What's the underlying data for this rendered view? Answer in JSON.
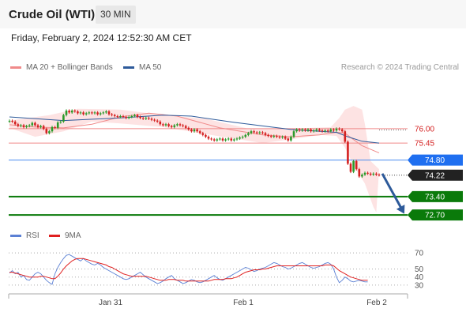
{
  "header": {
    "title": "Crude Oil (WTI)",
    "timeframe": "30 MIN"
  },
  "datetime": "Friday, February 2, 2024 12:52:30 AM CET",
  "legend": {
    "ma20": "MA 20 + Bollinger Bands",
    "ma50": "MA 50",
    "credit": "Research © 2024 Trading Central",
    "rsi": "RSI",
    "rsi_ma": "9MA"
  },
  "colors": {
    "ma20": "#f08a8a",
    "ma50": "#2d5a9a",
    "band": "#fde3e3",
    "resistance": "#f08a8a",
    "current": "#4a8cf0",
    "support": "#0a7a0a",
    "candle_up": "#2a9a2a",
    "candle_down": "#d42020",
    "arrow": "#2d5a9a",
    "rsi": "#5b80d4",
    "rsi_ma": "#e02020"
  },
  "chart_data": [
    {
      "type": "candlestick",
      "title": "Crude Oil (WTI)",
      "x_labels": [
        "Jan 31",
        "Feb 1",
        "Feb 2"
      ],
      "price_range": [
        72.4,
        77.9
      ],
      "candles": [
        [
          76.27,
          76.3
        ],
        [
          76.3,
          76.27
        ],
        [
          76.27,
          76.17
        ],
        [
          76.17,
          76.1
        ],
        [
          76.1,
          76.13
        ],
        [
          76.13,
          76.06
        ],
        [
          76.06,
          76.1
        ],
        [
          76.1,
          76.13
        ],
        [
          76.13,
          76.22
        ],
        [
          76.22,
          76.13
        ],
        [
          76.13,
          76.06
        ],
        [
          76.06,
          76.1
        ],
        [
          76.1,
          75.99
        ],
        [
          75.99,
          75.83
        ],
        [
          75.83,
          75.9
        ],
        [
          75.9,
          76.06
        ],
        [
          76.06,
          76.03
        ],
        [
          76.03,
          76.24
        ],
        [
          76.24,
          76.27
        ],
        [
          76.27,
          76.52
        ],
        [
          76.52,
          76.69
        ],
        [
          76.69,
          76.62
        ],
        [
          76.62,
          76.69
        ],
        [
          76.69,
          76.66
        ],
        [
          76.66,
          76.59
        ],
        [
          76.59,
          76.62
        ],
        [
          76.62,
          76.55
        ],
        [
          76.55,
          76.59
        ],
        [
          76.59,
          76.62
        ],
        [
          76.62,
          76.59
        ],
        [
          76.59,
          76.62
        ],
        [
          76.62,
          76.55
        ],
        [
          76.55,
          76.59
        ],
        [
          76.59,
          76.62
        ],
        [
          76.62,
          76.66
        ],
        [
          76.66,
          76.55
        ],
        [
          76.55,
          76.52
        ],
        [
          76.52,
          76.48
        ],
        [
          76.48,
          76.45
        ],
        [
          76.45,
          76.48
        ],
        [
          76.48,
          76.45
        ],
        [
          76.45,
          76.41
        ],
        [
          76.41,
          76.45
        ],
        [
          76.45,
          76.48
        ],
        [
          76.48,
          76.52
        ],
        [
          76.52,
          76.45
        ],
        [
          76.45,
          76.41
        ],
        [
          76.41,
          76.38
        ],
        [
          76.38,
          76.41
        ],
        [
          76.41,
          76.38
        ],
        [
          76.38,
          76.34
        ],
        [
          76.34,
          76.31
        ],
        [
          76.31,
          76.27
        ],
        [
          76.27,
          76.17
        ],
        [
          76.17,
          76.13
        ],
        [
          76.13,
          76.17
        ],
        [
          76.17,
          76.1
        ],
        [
          76.1,
          76.06
        ],
        [
          76.06,
          76.13
        ],
        [
          76.13,
          76.17
        ],
        [
          76.17,
          76.13
        ],
        [
          76.13,
          76.1
        ],
        [
          76.1,
          76.03
        ],
        [
          76.03,
          75.97
        ],
        [
          75.97,
          75.9
        ],
        [
          75.9,
          75.97
        ],
        [
          75.97,
          75.9
        ],
        [
          75.9,
          75.83
        ],
        [
          75.83,
          75.76
        ],
        [
          75.76,
          75.69
        ],
        [
          75.69,
          75.62
        ],
        [
          75.62,
          75.59
        ],
        [
          75.59,
          75.55
        ],
        [
          75.55,
          75.59
        ],
        [
          75.59,
          75.62
        ],
        [
          75.62,
          75.55
        ],
        [
          75.55,
          75.59
        ],
        [
          75.59,
          75.62
        ],
        [
          75.62,
          75.55
        ],
        [
          75.55,
          75.59
        ],
        [
          75.59,
          75.62
        ],
        [
          75.62,
          75.66
        ],
        [
          75.66,
          75.69
        ],
        [
          75.69,
          75.76
        ],
        [
          75.76,
          75.83
        ],
        [
          75.83,
          75.9
        ],
        [
          75.9,
          75.86
        ],
        [
          75.86,
          75.83
        ],
        [
          75.83,
          75.86
        ],
        [
          75.86,
          75.83
        ],
        [
          75.83,
          75.76
        ],
        [
          75.76,
          75.72
        ],
        [
          75.72,
          75.69
        ],
        [
          75.69,
          75.72
        ],
        [
          75.72,
          75.69
        ],
        [
          75.69,
          75.66
        ],
        [
          75.66,
          75.69
        ],
        [
          75.69,
          75.62
        ],
        [
          75.62,
          75.55
        ],
        [
          75.55,
          75.69
        ],
        [
          75.69,
          75.9
        ],
        [
          75.9,
          75.97
        ],
        [
          75.97,
          75.93
        ],
        [
          75.93,
          75.97
        ],
        [
          75.97,
          75.93
        ],
        [
          75.93,
          75.97
        ],
        [
          75.97,
          75.9
        ],
        [
          75.9,
          75.93
        ],
        [
          75.93,
          75.97
        ],
        [
          75.97,
          75.93
        ],
        [
          75.93,
          75.9
        ],
        [
          75.9,
          75.93
        ],
        [
          75.93,
          75.9
        ],
        [
          75.9,
          75.97
        ],
        [
          75.97,
          75.93
        ],
        [
          75.93,
          76.0
        ],
        [
          76.0,
          75.97
        ],
        [
          75.97,
          75.9
        ],
        [
          75.9,
          75.5
        ],
        [
          75.5,
          74.66
        ],
        [
          74.66,
          74.35
        ],
        [
          74.35,
          74.76
        ],
        [
          74.76,
          74.45
        ],
        [
          74.45,
          74.17
        ],
        [
          74.17,
          74.24
        ],
        [
          74.24,
          74.31
        ],
        [
          74.31,
          74.28
        ],
        [
          74.28,
          74.24
        ],
        [
          74.24,
          74.28
        ],
        [
          74.28,
          74.24
        ],
        [
          74.24,
          74.22
        ]
      ],
      "ma20": [
        [
          1,
          76.15
        ],
        [
          10,
          76.06
        ],
        [
          20,
          76.03
        ],
        [
          30,
          76.17
        ],
        [
          40,
          76.45
        ],
        [
          50,
          76.59
        ],
        [
          60,
          76.48
        ],
        [
          75,
          76.03
        ],
        [
          90,
          75.76
        ],
        [
          100,
          75.69
        ],
        [
          110,
          75.76
        ],
        [
          116,
          75.86
        ],
        [
          119,
          75.83
        ],
        [
          121,
          75.66
        ],
        [
          125,
          75.35
        ],
        [
          131,
          75.07
        ]
      ],
      "ma50": [
        [
          1,
          76.45
        ],
        [
          20,
          76.31
        ],
        [
          40,
          76.41
        ],
        [
          55,
          76.52
        ],
        [
          65,
          76.48
        ],
        [
          80,
          76.24
        ],
        [
          100,
          75.97
        ],
        [
          116,
          75.86
        ],
        [
          120,
          75.69
        ],
        [
          125,
          75.52
        ],
        [
          131,
          75.45
        ]
      ],
      "bollinger_upper": [
        [
          1,
          76.31
        ],
        [
          15,
          76.52
        ],
        [
          25,
          76.76
        ],
        [
          40,
          76.73
        ],
        [
          55,
          76.52
        ],
        [
          70,
          76.38
        ],
        [
          85,
          76.0
        ],
        [
          100,
          76.0
        ],
        [
          114,
          76.06
        ],
        [
          117,
          76.41
        ],
        [
          119,
          76.73
        ],
        [
          122,
          76.87
        ],
        [
          125,
          76.73
        ],
        [
          126,
          76.17
        ],
        [
          128,
          74.76
        ],
        [
          131,
          74.45
        ]
      ],
      "bollinger_lower": [
        [
          1,
          76.03
        ],
        [
          10,
          75.69
        ],
        [
          20,
          75.9
        ],
        [
          30,
          76.27
        ],
        [
          40,
          76.2
        ],
        [
          55,
          76.06
        ],
        [
          70,
          75.79
        ],
        [
          80,
          75.62
        ],
        [
          90,
          75.45
        ],
        [
          100,
          75.59
        ],
        [
          110,
          75.76
        ],
        [
          116,
          75.72
        ],
        [
          119,
          75.28
        ],
        [
          122,
          74.59
        ],
        [
          126,
          73.9
        ],
        [
          129,
          73.0
        ],
        [
          130,
          72.8
        ]
      ],
      "levels": [
        {
          "label": "76.00",
          "value": 76.0,
          "kind": "resistance"
        },
        {
          "label": "75.45",
          "value": 75.45,
          "kind": "resistance"
        },
        {
          "label": "74.80",
          "value": 74.8,
          "kind": "pivot"
        },
        {
          "label": "74.22",
          "value": 74.22,
          "kind": "last"
        },
        {
          "label": "73.40",
          "value": 73.4,
          "kind": "support"
        },
        {
          "label": "72.70",
          "value": 72.7,
          "kind": "support"
        }
      ]
    },
    {
      "type": "line",
      "title": "RSI",
      "ylim": [
        25,
        78
      ],
      "y_ticks": [
        "70",
        "50",
        "40",
        "30"
      ],
      "series": [
        {
          "name": "RSI",
          "values": [
            45,
            48,
            44,
            46,
            40,
            42,
            37,
            36,
            40,
            44,
            46,
            44,
            40,
            36,
            33,
            31,
            44,
            52,
            58,
            63,
            67,
            68,
            66,
            64,
            62,
            60,
            63,
            60,
            58,
            56,
            55,
            57,
            55,
            52,
            50,
            48,
            46,
            44,
            42,
            40,
            38,
            37,
            38,
            40,
            42,
            44,
            46,
            43,
            40,
            38,
            36,
            34,
            32,
            33,
            35,
            38,
            40,
            42,
            38,
            36,
            34,
            32,
            33,
            35,
            37,
            36,
            34,
            33,
            34,
            36,
            38,
            40,
            42,
            39,
            37,
            36,
            38,
            40,
            42,
            44,
            46,
            48,
            50,
            52,
            51,
            49,
            47,
            48,
            50,
            51,
            52,
            54,
            56,
            58,
            57,
            55,
            53,
            52,
            50,
            51,
            53,
            55,
            57,
            58,
            56,
            54,
            52,
            51,
            52,
            53,
            55,
            57,
            58,
            56,
            50,
            40,
            33,
            36,
            40,
            38,
            35,
            34,
            35,
            36,
            35,
            34,
            34
          ]
        },
        {
          "name": "9MA",
          "values": [
            46,
            46,
            45,
            44,
            43,
            42,
            41,
            40,
            40,
            40,
            40,
            41,
            41,
            40,
            39,
            38,
            38,
            41,
            45,
            50,
            54,
            57,
            60,
            62,
            63,
            63,
            63,
            62,
            61,
            60,
            59,
            58,
            57,
            56,
            55,
            53,
            52,
            50,
            48,
            46,
            44,
            43,
            42,
            41,
            41,
            41,
            41,
            41,
            41,
            40,
            39,
            38,
            37,
            36,
            36,
            36,
            37,
            37,
            37,
            36,
            36,
            36,
            35,
            35,
            35,
            35,
            35,
            35,
            35,
            35,
            35,
            36,
            37,
            37,
            37,
            37,
            38,
            38,
            38,
            39,
            40,
            42,
            44,
            46,
            47,
            48,
            49,
            49,
            49,
            50,
            50,
            51,
            52,
            53,
            54,
            54,
            54,
            54,
            54,
            54,
            54,
            54,
            54,
            54,
            54,
            54,
            54,
            54,
            54,
            54,
            54,
            55,
            55,
            55,
            54,
            51,
            48,
            46,
            44,
            42,
            40,
            39,
            38,
            37,
            36,
            36,
            36
          ]
        }
      ]
    }
  ]
}
